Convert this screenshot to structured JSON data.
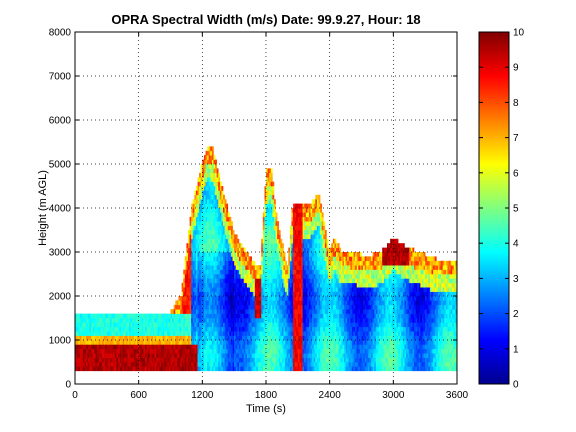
{
  "chart_data": {
    "type": "heatmap",
    "title": "OPRA Spectral Width (m/s)  Date: 99.9.27, Hour: 18",
    "xlabel": "Time (s)",
    "ylabel": "Height (m AGL)",
    "xlim": [
      0,
      3600
    ],
    "ylim": [
      0,
      8000
    ],
    "xticks": [
      0,
      600,
      1200,
      1800,
      2400,
      3000,
      3600
    ],
    "yticks": [
      0,
      1000,
      2000,
      3000,
      4000,
      5000,
      6000,
      7000,
      8000
    ],
    "grid": "dotted",
    "colorbar": {
      "range": [
        0,
        10
      ],
      "ticks": [
        0,
        1,
        2,
        3,
        4,
        5,
        6,
        7,
        8,
        9,
        10
      ],
      "colormap": "jet"
    },
    "data_extent_x": [
      0,
      3600
    ],
    "data_min_height": 300,
    "top_height_profile": {
      "time": [
        0,
        300,
        600,
        900,
        1000,
        1050,
        1100,
        1150,
        1200,
        1250,
        1300,
        1350,
        1400,
        1500,
        1600,
        1700,
        1750,
        1800,
        1850,
        1900,
        1950,
        2000,
        2050,
        2100,
        2200,
        2300,
        2350,
        2400,
        2450,
        2500,
        2600,
        2700,
        2800,
        2900,
        3000,
        3100,
        3200,
        3300,
        3400,
        3600
      ],
      "height": [
        1600,
        1600,
        1600,
        1600,
        2000,
        3000,
        4000,
        4500,
        5000,
        5400,
        5300,
        4800,
        4300,
        3400,
        3000,
        2700,
        2700,
        4800,
        4900,
        3800,
        3200,
        2600,
        4000,
        4100,
        4000,
        4300,
        3600,
        3000,
        3300,
        3000,
        3000,
        2900,
        2900,
        3000,
        3300,
        3100,
        3000,
        2900,
        2800,
        2800
      ]
    },
    "features": [
      {
        "time_range": [
          0,
          1150
        ],
        "height_range": [
          300,
          900
        ],
        "level": 9.5
      },
      {
        "time_range": [
          0,
          1100
        ],
        "height_range": [
          900,
          1100
        ],
        "level": 7.0
      },
      {
        "time_range": [
          0,
          1000
        ],
        "height_range": [
          1100,
          1600
        ],
        "level": 4.0
      },
      {
        "time_range": [
          1700,
          1750
        ],
        "height_range": [
          1500,
          2400
        ],
        "level": 9.2
      },
      {
        "time_range": [
          2050,
          2150
        ],
        "height_range": [
          300,
          4800
        ],
        "level": 8.8
      },
      {
        "time_range": [
          2900,
          3150
        ],
        "height_range": [
          2700,
          3900
        ],
        "level": 9.5
      }
    ]
  }
}
